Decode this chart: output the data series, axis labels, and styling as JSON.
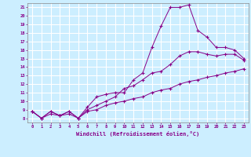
{
  "xlabel": "Windchill (Refroidissement éolien,°C)",
  "bg_color": "#cceeff",
  "grid_color": "#aaddcc",
  "line_color": "#880088",
  "x_ticks": [
    0,
    1,
    2,
    3,
    4,
    5,
    6,
    7,
    8,
    9,
    10,
    11,
    12,
    13,
    14,
    15,
    16,
    17,
    18,
    19,
    20,
    21,
    22,
    23
  ],
  "y_ticks": [
    8,
    9,
    10,
    11,
    12,
    13,
    14,
    15,
    16,
    17,
    18,
    19,
    20,
    21
  ],
  "xlim": [
    -0.5,
    23.5
  ],
  "ylim": [
    7.5,
    21.5
  ],
  "line1_x": [
    0,
    1,
    2,
    3,
    4,
    5,
    6,
    7,
    8,
    9,
    10,
    11,
    12,
    13,
    14,
    15,
    16,
    17,
    18,
    19,
    20,
    21,
    22,
    23
  ],
  "line1_y": [
    8.8,
    8.0,
    8.8,
    8.3,
    8.8,
    8.0,
    9.3,
    10.5,
    10.8,
    11.0,
    11.0,
    12.5,
    13.3,
    16.3,
    18.8,
    21.0,
    21.0,
    21.3,
    18.3,
    17.5,
    16.3,
    16.3,
    16.0,
    15.0
  ],
  "line2_x": [
    0,
    1,
    2,
    3,
    4,
    5,
    6,
    7,
    8,
    9,
    10,
    11,
    12,
    13,
    14,
    15,
    16,
    17,
    18,
    19,
    20,
    21,
    22,
    23
  ],
  "line2_y": [
    8.8,
    8.0,
    8.8,
    8.3,
    8.8,
    8.0,
    9.0,
    9.5,
    10.0,
    10.5,
    11.5,
    11.8,
    12.5,
    13.3,
    13.5,
    14.3,
    15.3,
    15.8,
    15.8,
    15.5,
    15.3,
    15.5,
    15.5,
    14.8
  ],
  "line3_x": [
    0,
    1,
    2,
    3,
    4,
    5,
    6,
    7,
    8,
    9,
    10,
    11,
    12,
    13,
    14,
    15,
    16,
    17,
    18,
    19,
    20,
    21,
    22,
    23
  ],
  "line3_y": [
    8.8,
    8.0,
    8.5,
    8.3,
    8.5,
    8.0,
    8.8,
    9.0,
    9.5,
    9.8,
    10.0,
    10.3,
    10.5,
    11.0,
    11.3,
    11.5,
    12.0,
    12.3,
    12.5,
    12.8,
    13.0,
    13.3,
    13.5,
    13.8
  ]
}
